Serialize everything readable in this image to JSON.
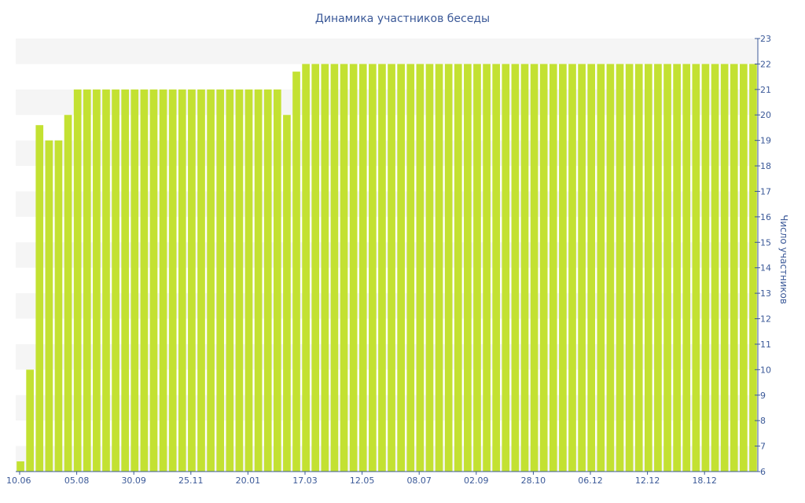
{
  "chart_data": {
    "type": "bar",
    "title": "Динамика участников беседы",
    "ylabel": "Число участников",
    "xlabel": "",
    "ylim": [
      6,
      23
    ],
    "y_ticks": [
      6,
      7,
      8,
      9,
      10,
      11,
      12,
      13,
      14,
      15,
      16,
      17,
      18,
      19,
      20,
      21,
      22,
      23
    ],
    "y_axis_side": "right",
    "x_tick_labels": [
      "10.06",
      "05.08",
      "30.09",
      "25.11",
      "20.01",
      "17.03",
      "12.05",
      "08.07",
      "02.09",
      "28.10",
      "06.12",
      "12.12",
      "18.12"
    ],
    "grid": "horizontal bands",
    "colors": {
      "bar": "#c3e132",
      "text": "#3b5998",
      "band": "#f5f5f5",
      "axis": "#3b5998"
    },
    "values": [
      6.4,
      10,
      19.6,
      19,
      19,
      20,
      21,
      21,
      21,
      21,
      21,
      21,
      21,
      21,
      21,
      21,
      21,
      21,
      21,
      21,
      21,
      21,
      21,
      21,
      21,
      21,
      21,
      21,
      20,
      21.7,
      22,
      22,
      22,
      22,
      22,
      22,
      22,
      22,
      22,
      22,
      22,
      22,
      22,
      22,
      22,
      22,
      22,
      22,
      22,
      22,
      22,
      22,
      22,
      22,
      22,
      22,
      22,
      22,
      22,
      22,
      22,
      22,
      22,
      22,
      22,
      22,
      22,
      22,
      22,
      22,
      22,
      22,
      22,
      22,
      22,
      22,
      22,
      22
    ]
  }
}
